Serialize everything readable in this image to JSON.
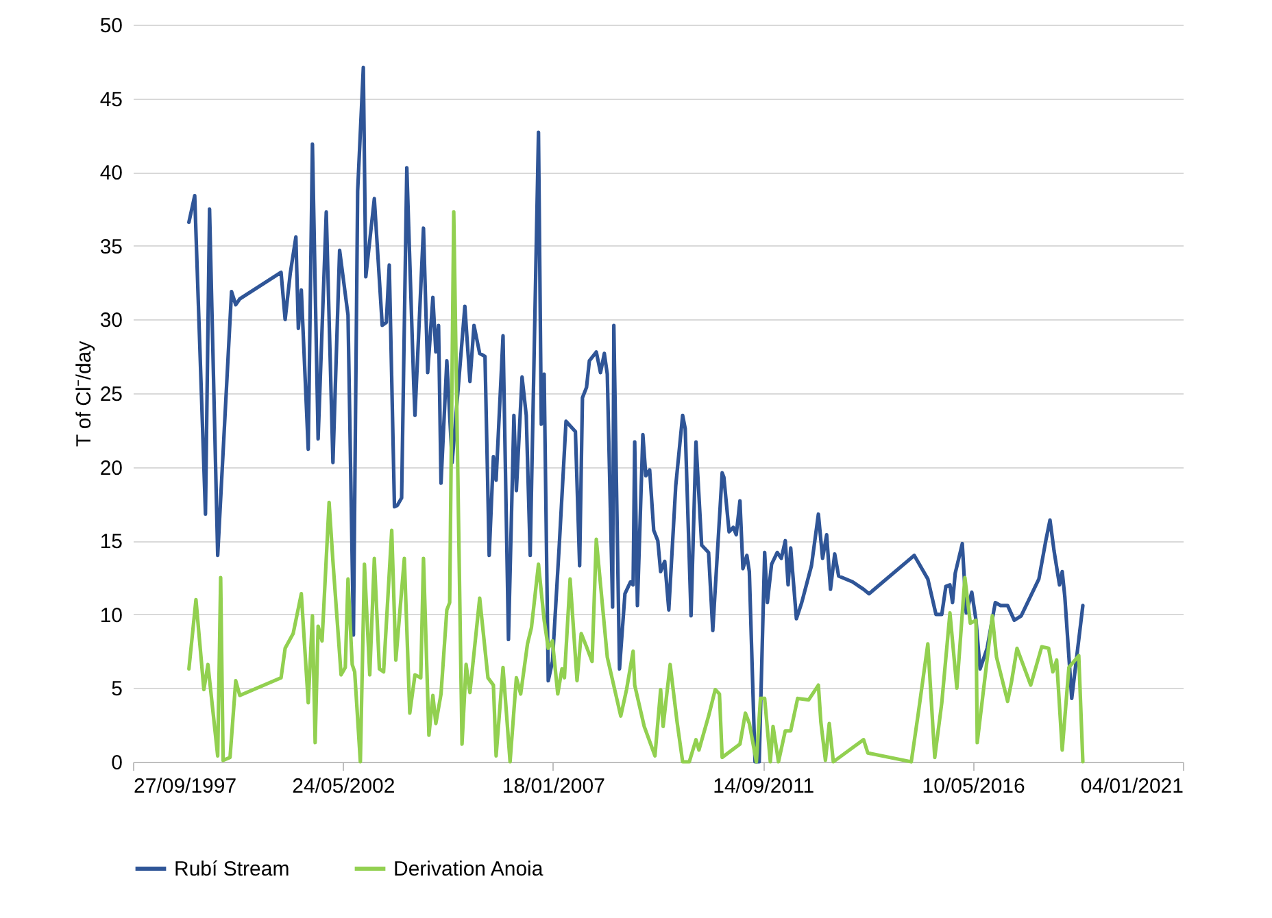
{
  "chart_data": {
    "type": "line",
    "ylabel": "T of Cl⁻/day",
    "xlim": [
      "1997-09-27",
      "2021-01-04"
    ],
    "xticks": [
      {
        "value": "1997-09-27",
        "label": "27/09/1997"
      },
      {
        "value": "2002-05-24",
        "label": "24/05/2002"
      },
      {
        "value": "2007-01-18",
        "label": "18/01/2007"
      },
      {
        "value": "2011-09-14",
        "label": "14/09/2011"
      },
      {
        "value": "2016-05-10",
        "label": "10/05/2016"
      },
      {
        "value": "2021-01-04",
        "label": "04/01/2021"
      }
    ],
    "ylim": [
      0,
      50
    ],
    "yticks": [
      0,
      5,
      10,
      15,
      20,
      25,
      30,
      35,
      40,
      45,
      50
    ],
    "grid": "y",
    "legend": "bottom",
    "series": [
      {
        "name": "Rubí Stream",
        "color": "#2f5597",
        "x": [
          "1998-12-24",
          "1999-02-09",
          "1999-05-07",
          "1999-06-09",
          "1999-08-14",
          "1999-12-04",
          "2000-01-07",
          "2000-02-09",
          "2001-01-08",
          "2001-02-10",
          "2001-03-23",
          "2001-05-08",
          "2001-05-28",
          "2001-06-21",
          "2001-08-16",
          "2001-09-19",
          "2001-11-04",
          "2002-01-09",
          "2002-03-04",
          "2002-04-27",
          "2002-07-04",
          "2002-08-17",
          "2002-09-20",
          "2002-11-05",
          "2002-11-25",
          "2003-02-02",
          "2003-04-07",
          "2003-05-10",
          "2003-06-03",
          "2003-07-15",
          "2003-08-08",
          "2003-09-11",
          "2003-10-23",
          "2003-12-18",
          "2003-12-28",
          "2004-03-06",
          "2004-04-09",
          "2004-05-21",
          "2004-06-14",
          "2004-07-06",
          "2004-07-26",
          "2004-09-11",
          "2004-10-24",
          "2005-02-04",
          "2005-03-17",
          "2005-04-19",
          "2005-06-04",
          "2005-07-17",
          "2005-08-20",
          "2005-09-23",
          "2005-10-15",
          "2005-12-10",
          "2006-01-23",
          "2006-03-08",
          "2006-03-28",
          "2006-05-13",
          "2006-06-16",
          "2006-07-18",
          "2006-09-23",
          "2006-10-16",
          "2006-11-08",
          "2006-12-11",
          "2007-01-14",
          "2007-03-09",
          "2007-05-04",
          "2007-07-19",
          "2007-08-22",
          "2007-09-14",
          "2007-10-17",
          "2007-11-09",
          "2008-01-04",
          "2008-02-07",
          "2008-03-09",
          "2008-04-02",
          "2008-05-15",
          "2008-05-25",
          "2008-07-10",
          "2008-08-23",
          "2008-10-07",
          "2008-10-28",
          "2008-11-10",
          "2008-12-02",
          "2009-01-15",
          "2009-02-08",
          "2009-03-11",
          "2009-04-13",
          "2009-05-16",
          "2009-06-08",
          "2009-07-11",
          "2009-08-13",
          "2009-10-08",
          "2009-12-03",
          "2009-12-24",
          "2010-02-09",
          "2010-03-21",
          "2010-05-06",
          "2010-07-01",
          "2010-08-04",
          "2010-10-19",
          "2010-11-02",
          "2010-12-14",
          "2011-01-17",
          "2011-02-10",
          "2011-03-12",
          "2011-04-05",
          "2011-05-07",
          "2011-05-27",
          "2011-07-12",
          "2011-08-15",
          "2011-09-28",
          "2011-10-20",
          "2011-11-23",
          "2012-01-08",
          "2012-02-10",
          "2012-03-13",
          "2012-04-05",
          "2012-04-26",
          "2012-06-11",
          "2012-07-24",
          "2012-10-11",
          "2012-12-06",
          "2013-01-09",
          "2013-02-11",
          "2013-03-14",
          "2013-04-17",
          "2013-05-19",
          "2013-09-09",
          "2013-12-07",
          "2014-01-20",
          "2015-01-21",
          "2015-05-11",
          "2015-07-16",
          "2015-09-01",
          "2015-10-04",
          "2015-11-06",
          "2015-11-27",
          "2015-12-19",
          "2016-02-14",
          "2016-03-17",
          "2016-05-01",
          "2016-06-04",
          "2016-07-07",
          "2016-09-02",
          "2016-11-07",
          "2016-12-20",
          "2017-02-15",
          "2017-04-10",
          "2017-06-05",
          "2017-10-26",
          "2017-12-21",
          "2018-01-24",
          "2018-02-26",
          "2018-04-11",
          "2018-05-03",
          "2018-05-24",
          "2018-07-19",
          "2018-10-17"
        ],
        "values": [
          36.6,
          38.4,
          16.8,
          37.5,
          14.0,
          31.9,
          31.0,
          31.4,
          33.2,
          30.0,
          33.1,
          35.6,
          29.4,
          32.0,
          21.2,
          41.9,
          21.9,
          37.3,
          20.3,
          34.7,
          30.3,
          8.6,
          38.7,
          47.1,
          32.9,
          38.2,
          29.6,
          29.8,
          33.7,
          17.3,
          17.4,
          17.9,
          40.3,
          25.6,
          23.5,
          36.2,
          26.4,
          31.5,
          27.8,
          29.6,
          18.9,
          27.2,
          20.3,
          30.9,
          25.8,
          29.6,
          27.7,
          27.5,
          14.0,
          20.7,
          19.1,
          28.9,
          8.3,
          23.5,
          18.4,
          26.1,
          23.5,
          14.0,
          42.7,
          22.9,
          26.3,
          5.5,
          6.8,
          14.5,
          23.1,
          22.4,
          13.3,
          24.7,
          25.4,
          27.2,
          27.8,
          26.4,
          27.7,
          26.3,
          10.5,
          29.6,
          6.3,
          11.4,
          12.2,
          12.0,
          21.7,
          10.6,
          22.2,
          19.4,
          19.8,
          15.7,
          15.0,
          12.9,
          13.6,
          10.3,
          18.7,
          23.5,
          22.6,
          9.9,
          21.7,
          14.7,
          14.2,
          8.9,
          19.6,
          19.3,
          15.6,
          15.9,
          15.4,
          17.7,
          13.1,
          14.0,
          12.9,
          0,
          0,
          14.2,
          10.8,
          13.4,
          14.2,
          13.8,
          15.0,
          12.0,
          14.5,
          9.7,
          10.8,
          13.3,
          16.8,
          13.8,
          15.4,
          11.7,
          14.1,
          12.6,
          12.2,
          11.7,
          11.4,
          14.0,
          12.4,
          10.0,
          10.0,
          11.9,
          12.0,
          10.8,
          12.8,
          14.8,
          10.1,
          11.5,
          9.6,
          6.3,
          7.7,
          10.8,
          10.6,
          10.6,
          9.6,
          9.9,
          12.4,
          15.0,
          16.4,
          14.3,
          12.0,
          12.9,
          11.2,
          4.3,
          10.6
        ]
      },
      {
        "name": "Derivation Anoia",
        "color": "#92d050",
        "x": [
          "1998-12-24",
          "1999-02-19",
          "1999-04-24",
          "1999-05-27",
          "1999-08-14",
          "1999-09-07",
          "1999-09-27",
          "1999-11-22",
          "2000-01-07",
          "2000-02-09",
          "2001-01-08",
          "2001-02-10",
          "2001-04-16",
          "2001-06-21",
          "2001-08-16",
          "2001-09-19",
          "2001-10-11",
          "2001-11-04",
          "2001-12-06",
          "2002-02-01",
          "2002-03-04",
          "2002-05-09",
          "2002-06-12",
          "2002-07-04",
          "2002-08-07",
          "2002-08-27",
          "2002-10-12",
          "2002-11-14",
          "2002-12-27",
          "2003-02-02",
          "2003-03-15",
          "2003-04-18",
          "2003-06-23",
          "2003-07-26",
          "2003-10-03",
          "2003-11-16",
          "2003-12-28",
          "2004-02-13",
          "2004-03-06",
          "2004-04-19",
          "2004-05-21",
          "2004-06-14",
          "2004-07-26",
          "2004-09-11",
          "2004-10-04",
          "2004-11-06",
          "2005-01-12",
          "2005-02-14",
          "2005-03-17",
          "2005-06-04",
          "2005-08-10",
          "2005-09-23",
          "2005-10-15",
          "2005-12-10",
          "2006-02-05",
          "2006-03-28",
          "2006-05-02",
          "2006-06-26",
          "2006-07-28",
          "2006-09-23",
          "2006-11-08",
          "2006-12-11",
          "2007-01-14",
          "2007-02-26",
          "2007-04-01",
          "2007-04-21",
          "2007-06-06",
          "2007-08-01",
          "2007-09-04",
          "2007-10-17",
          "2007-12-01",
          "2008-01-04",
          "2008-04-02",
          "2008-07-20",
          "2008-09-05",
          "2008-10-28",
          "2008-11-10",
          "2009-01-26",
          "2009-04-23",
          "2009-06-08",
          "2009-06-28",
          "2009-08-24",
          "2009-10-19",
          "2009-12-03",
          "2010-01-26",
          "2010-03-21",
          "2010-04-14",
          "2010-07-01",
          "2010-08-24",
          "2010-09-27",
          "2010-10-19",
          "2011-03-12",
          "2011-04-25",
          "2011-05-27",
          "2011-07-23",
          "2011-08-25",
          "2011-09-28",
          "2011-11-13",
          "2011-12-05",
          "2012-01-18",
          "2012-03-13",
          "2012-04-26",
          "2012-06-21",
          "2012-09-18",
          "2012-12-06",
          "2012-12-26",
          "2013-02-01",
          "2013-03-04",
          "2013-04-06",
          "2013-12-07",
          "2014-01-10",
          "2014-12-28",
          "2015-02-23",
          "2015-05-11",
          "2015-07-06",
          "2015-09-01",
          "2015-11-06",
          "2016-01-01",
          "2016-03-06",
          "2016-04-19",
          "2016-06-04",
          "2016-06-14",
          "2016-10-14",
          "2016-11-17",
          "2017-02-15",
          "2017-03-18",
          "2017-05-02",
          "2017-08-21",
          "2017-11-18",
          "2018-01-13",
          "2018-02-16",
          "2018-03-19",
          "2018-05-03",
          "2018-06-26",
          "2018-09-14",
          "2018-10-17"
        ],
        "values": [
          6.3,
          11.0,
          4.9,
          6.6,
          0.4,
          12.5,
          0.1,
          0.3,
          5.5,
          4.5,
          5.7,
          7.7,
          8.7,
          11.4,
          4.0,
          9.9,
          1.3,
          9.2,
          8.2,
          17.6,
          13.6,
          5.9,
          6.4,
          12.4,
          6.6,
          6.1,
          0,
          13.4,
          5.9,
          13.8,
          6.3,
          6.1,
          15.7,
          6.9,
          13.8,
          3.3,
          5.9,
          5.7,
          13.8,
          1.8,
          4.5,
          2.6,
          4.6,
          10.3,
          10.8,
          37.3,
          1.2,
          6.6,
          4.7,
          11.1,
          5.7,
          5.2,
          0.4,
          6.4,
          0,
          5.7,
          4.6,
          8.0,
          9.1,
          13.4,
          9.6,
          7.7,
          8.2,
          4.6,
          6.3,
          5.7,
          12.4,
          5.5,
          8.7,
          7.8,
          6.8,
          15.1,
          7.1,
          3.1,
          4.9,
          7.5,
          5.2,
          2.4,
          0.4,
          4.9,
          2.4,
          6.6,
          2.7,
          0,
          0,
          1.5,
          0.8,
          3.1,
          4.9,
          4.6,
          0.3,
          1.2,
          3.3,
          2.6,
          0,
          4.3,
          4.3,
          0,
          2.4,
          0,
          2.1,
          2.1,
          4.3,
          4.2,
          5.2,
          2.7,
          0.1,
          2.6,
          0,
          1.5,
          0.6,
          0,
          3.3,
          8.0,
          0.3,
          4.0,
          10.1,
          5.0,
          12.5,
          9.4,
          9.6,
          1.3,
          9.9,
          7.1,
          4.1,
          5.4,
          7.7,
          5.2,
          7.8,
          7.7,
          6.1,
          6.9,
          0.8,
          6.4,
          7.2,
          0
        ]
      }
    ]
  }
}
